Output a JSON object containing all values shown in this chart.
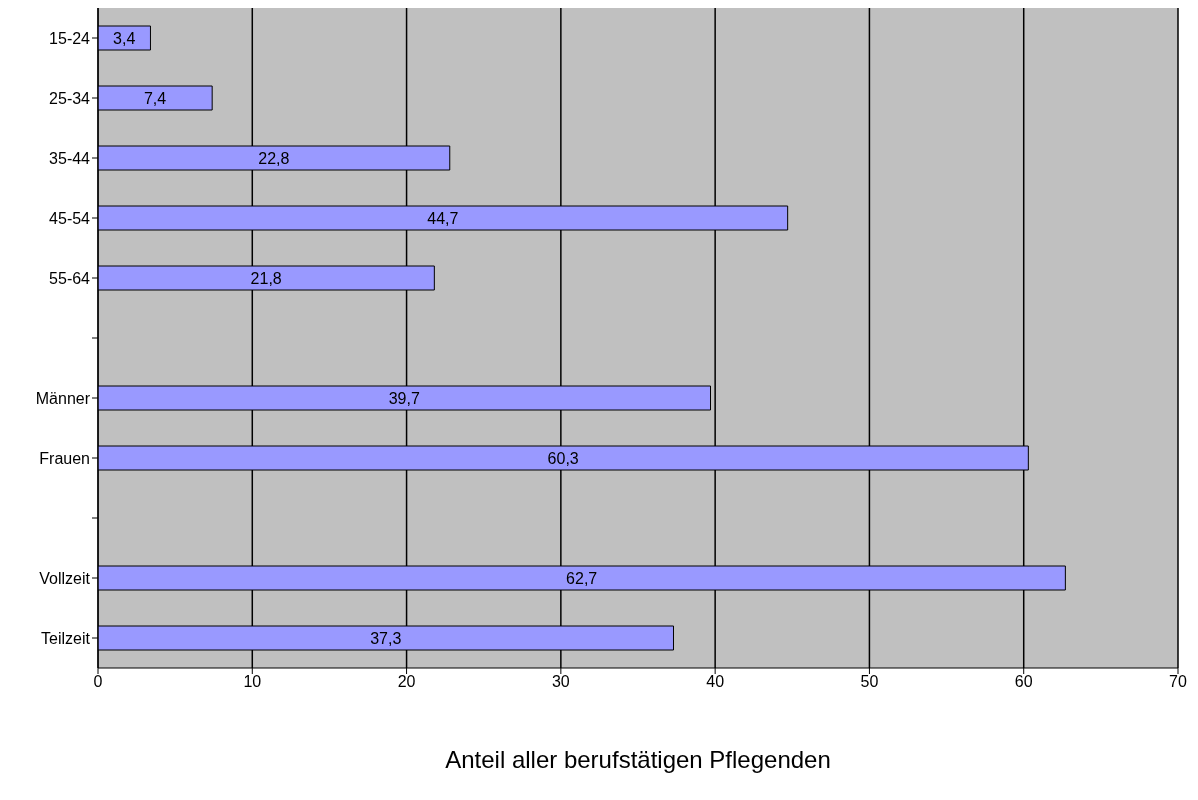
{
  "chart_data": {
    "type": "bar",
    "orientation": "horizontal",
    "xlabel": "Anteil aller berufstätigen Pflegenden",
    "categories": [
      "15-24",
      "25-34",
      "35-44",
      "45-54",
      "55-64",
      null,
      "Männer",
      "Frauen",
      null,
      "Vollzeit",
      "Teilzeit"
    ],
    "values": [
      3.4,
      7.4,
      22.8,
      44.7,
      21.8,
      null,
      39.7,
      60.3,
      null,
      62.7,
      37.3
    ],
    "value_labels": [
      "3,4",
      "7,4",
      "22,8",
      "44,7",
      "21,8",
      null,
      "39,7",
      "60,3",
      null,
      "62,7",
      "37,3"
    ],
    "color": "#9999ff",
    "xlim": [
      0,
      70
    ],
    "xticks": [
      0,
      10,
      20,
      30,
      40,
      50,
      60,
      70
    ],
    "grid": "x"
  }
}
